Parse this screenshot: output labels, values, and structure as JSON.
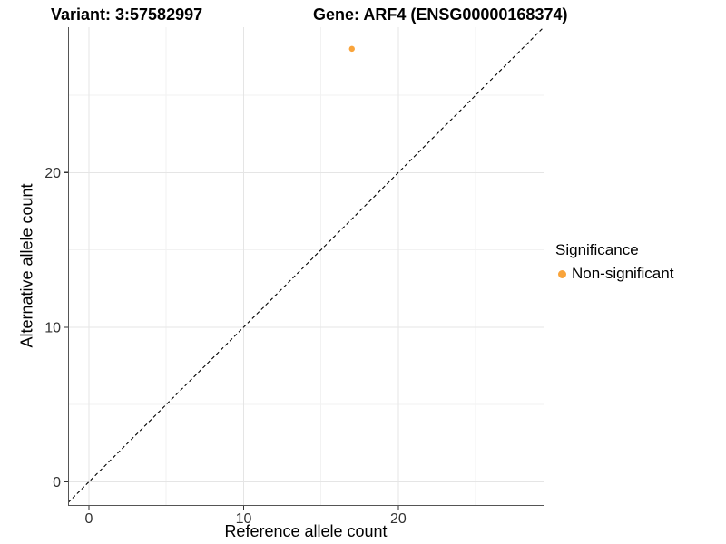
{
  "header": {
    "variant_title": "Variant: 3:57582997",
    "gene_title": "Gene: ARF4 (ENSG00000168374)"
  },
  "chart_data": {
    "type": "scatter",
    "points": [
      {
        "x": 17,
        "y": 28,
        "series": "Non-significant"
      }
    ],
    "xlabel": "Reference allele count",
    "ylabel": "Alternative allele count",
    "xlim": [
      -1.35,
      29.45
    ],
    "ylim": [
      -1.5,
      29.4
    ],
    "x_ticks": [
      0,
      10,
      20
    ],
    "y_ticks": [
      0,
      10,
      20
    ],
    "x_minor_gridlines": [
      5,
      15,
      25
    ],
    "y_minor_gridlines": [
      5,
      15,
      25
    ],
    "grid": true,
    "abline": {
      "slope": 1,
      "intercept": 0,
      "style": "dashed"
    },
    "legend": {
      "title": "Significance",
      "position": "right",
      "items": [
        {
          "label": "Non-significant",
          "color": "#F9A43B"
        }
      ]
    }
  },
  "colors": {
    "background": "#FFFFFF",
    "axis_line": "#555555",
    "tick_mark": "#333333",
    "tick_label": "#333333",
    "grid_major": "#E5E5E5",
    "grid_minor": "#F2F2F2",
    "abline": "#000000"
  }
}
